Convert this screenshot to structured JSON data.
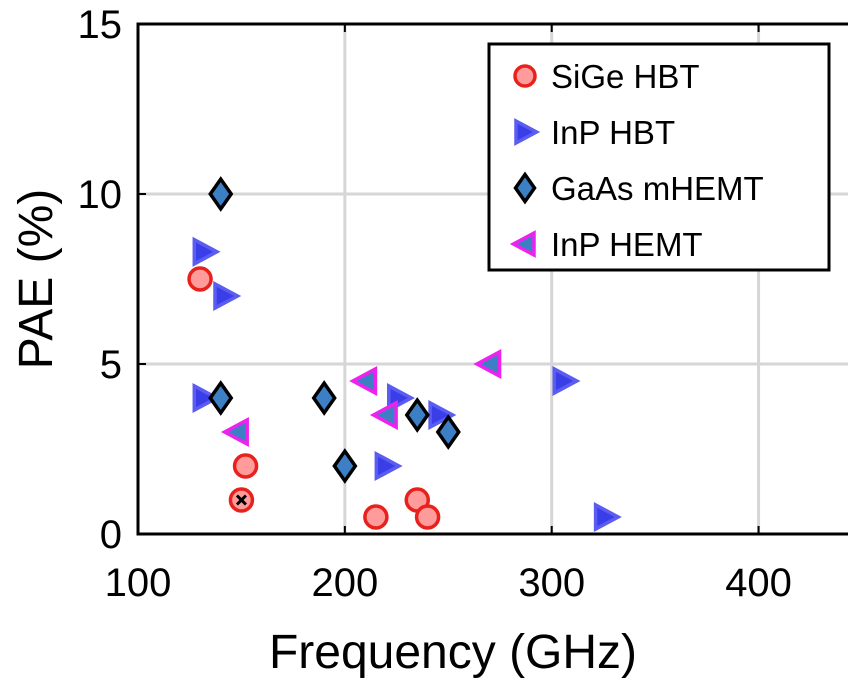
{
  "chart_data": {
    "type": "scatter",
    "xlabel": "Frequency (GHz)",
    "ylabel": "PAE (%)",
    "xlim": [
      100,
      450
    ],
    "ylim": [
      0,
      15
    ],
    "xticks": [
      100,
      200,
      300,
      400
    ],
    "yticks": [
      0,
      5,
      10,
      15
    ],
    "grid": true,
    "legend_position": "top-right",
    "series": [
      {
        "name": "SiGe HBT",
        "marker": "circle",
        "color": "#ff9b9b",
        "edge_color": "#e8211d",
        "points": [
          [
            130,
            7.5
          ],
          [
            152,
            2.0
          ],
          [
            150,
            1.0
          ],
          [
            215,
            0.5
          ],
          [
            235,
            1.0
          ],
          [
            240,
            0.5
          ]
        ]
      },
      {
        "name": "InP HBT",
        "marker": "triangle-right",
        "color": "#3a3ee8",
        "edge_color": "#5b5cf0",
        "points": [
          [
            132,
            8.3
          ],
          [
            142,
            7.0
          ],
          [
            132,
            4.0
          ],
          [
            220,
            2.0
          ],
          [
            226,
            4.0
          ],
          [
            246,
            3.5
          ],
          [
            306,
            4.5
          ],
          [
            326,
            0.5
          ]
        ]
      },
      {
        "name": "GaAs mHEMT",
        "marker": "diamond",
        "color": "#3d7fc4",
        "edge_color": "#000000",
        "points": [
          [
            140,
            10.0
          ],
          [
            140,
            4.0
          ],
          [
            190,
            4.0
          ],
          [
            200,
            2.0
          ],
          [
            235,
            3.5
          ],
          [
            250,
            3.0
          ]
        ]
      },
      {
        "name": "InP HEMT",
        "marker": "triangle-left",
        "color": "#3d7fc4",
        "edge_color": "#ee22ee",
        "points": [
          [
            148,
            3.0
          ],
          [
            210,
            4.5
          ],
          [
            220,
            3.5
          ],
          [
            270,
            5.0
          ]
        ]
      }
    ],
    "annotations": [
      {
        "marker": "x",
        "x": 150,
        "y": 1.0,
        "color": "#000000"
      }
    ]
  }
}
